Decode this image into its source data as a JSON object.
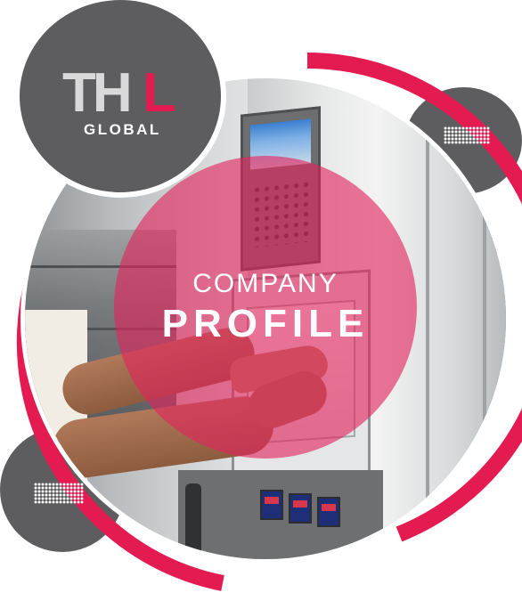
{
  "logo": {
    "mark_th": "TH",
    "mark_l": "L",
    "wordmark": "GLOBAL"
  },
  "cover": {
    "title_line1": "COMPANY",
    "title_line2": "PROFILE"
  },
  "colors": {
    "accent": "#e31b50",
    "gray": "#5d5d5f",
    "overlay": "rgba(226,36,92,0.62)"
  },
  "icons": [
    "dot-pattern-icon",
    "dot-pattern-icon"
  ]
}
